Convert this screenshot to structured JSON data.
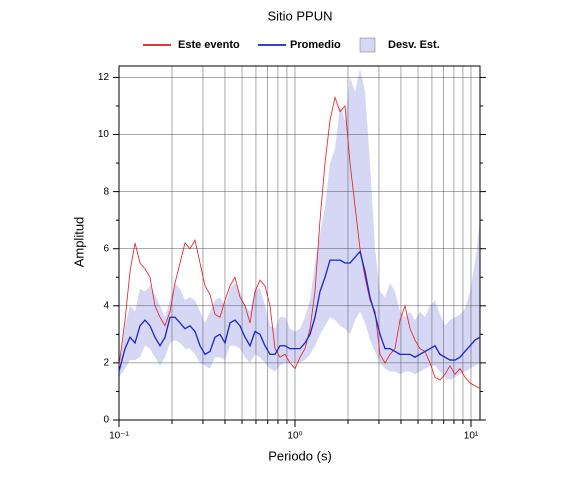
{
  "chart_data": {
    "type": "line",
    "title": "Sitio PPUN",
    "xlabel": "Periodo (s)",
    "ylabel": "Amplitud",
    "log_x": true,
    "grid": true,
    "xlim": [
      0.1,
      11.25
    ],
    "ylim": [
      0,
      12.4
    ],
    "xticks": [
      {
        "value": 0.1,
        "label": "10⁻¹"
      },
      {
        "value": 1,
        "label": "10⁰"
      },
      {
        "value": 10,
        "label": "10¹"
      }
    ],
    "xminorticks": [
      0.2,
      0.3,
      0.4,
      0.5,
      0.6,
      0.7,
      0.8,
      0.9,
      2,
      3,
      4,
      5,
      6,
      7,
      8,
      9
    ],
    "yticks": [
      0,
      2,
      4,
      6,
      8,
      10,
      12
    ],
    "yminorticks": [
      1,
      3,
      5,
      7,
      9,
      11
    ],
    "x": [
      0.1,
      0.1082,
      0.1155,
      0.1233,
      0.1316,
      0.1405,
      0.15,
      0.1601,
      0.171,
      0.1826,
      0.1949,
      0.2081,
      0.2222,
      0.2371,
      0.2532,
      0.2703,
      0.2886,
      0.3081,
      0.3289,
      0.3511,
      0.3749,
      0.4003,
      0.4273,
      0.4562,
      0.487,
      0.5199,
      0.5551,
      0.5926,
      0.6326,
      0.6754,
      0.7211,
      0.7698,
      0.8218,
      0.8774,
      0.9367,
      1.0,
      1.068,
      1.14,
      1.217,
      1.299,
      1.387,
      1.481,
      1.581,
      1.688,
      1.802,
      1.924,
      2.054,
      2.193,
      2.341,
      2.499,
      2.668,
      2.848,
      3.041,
      3.247,
      3.466,
      3.7,
      3.95,
      4.217,
      4.502,
      4.806,
      5.131,
      5.478,
      5.848,
      6.243,
      6.665,
      7.115,
      7.596,
      8.11,
      8.66,
      9.245,
      9.869,
      10.54,
      11.25
    ],
    "series": [
      {
        "name": "Este evento",
        "color": "#e8191d",
        "values": [
          1.9,
          3.5,
          5.2,
          6.2,
          5.5,
          5.3,
          5.0,
          4.0,
          3.6,
          3.3,
          3.8,
          4.8,
          5.5,
          6.2,
          6.0,
          6.3,
          5.5,
          4.7,
          4.4,
          3.7,
          3.6,
          4.2,
          4.7,
          5.0,
          4.3,
          4.0,
          3.4,
          4.5,
          4.9,
          4.7,
          4.0,
          2.5,
          2.2,
          2.3,
          2.0,
          1.8,
          2.2,
          2.5,
          3.2,
          4.5,
          7.0,
          9.0,
          10.5,
          11.3,
          10.8,
          11.0,
          9.0,
          7.5,
          6.0,
          5.0,
          4.2,
          3.8,
          2.3,
          2.0,
          2.3,
          2.5,
          3.5,
          4.0,
          3.2,
          2.8,
          2.5,
          2.4,
          2.0,
          1.5,
          1.4,
          1.6,
          1.9,
          1.6,
          1.8,
          1.5,
          1.3,
          1.2,
          1.1
        ]
      },
      {
        "name": "Promedio",
        "color": "#1726c8",
        "values": [
          1.7,
          2.5,
          2.9,
          2.7,
          3.3,
          3.5,
          3.3,
          2.9,
          2.6,
          2.9,
          3.6,
          3.6,
          3.4,
          3.2,
          3.3,
          3.1,
          2.6,
          2.3,
          2.4,
          2.9,
          3.0,
          2.7,
          3.4,
          3.5,
          3.3,
          2.9,
          2.6,
          3.1,
          3.0,
          2.6,
          2.3,
          2.3,
          2.6,
          2.6,
          2.5,
          2.5,
          2.5,
          2.7,
          3.0,
          3.6,
          4.5,
          5.0,
          5.6,
          5.6,
          5.6,
          5.5,
          5.5,
          5.7,
          5.9,
          5.2,
          4.3,
          3.7,
          3.0,
          2.5,
          2.5,
          2.4,
          2.3,
          2.3,
          2.3,
          2.2,
          2.3,
          2.4,
          2.5,
          2.6,
          2.3,
          2.2,
          2.1,
          2.1,
          2.2,
          2.4,
          2.6,
          2.8,
          2.9
        ]
      },
      {
        "name": "Desv. Est.",
        "color": "#d5d7f5",
        "upper": [
          2.0,
          3.3,
          4.0,
          3.8,
          4.6,
          4.5,
          4.7,
          4.4,
          4.0,
          3.6,
          4.2,
          4.8,
          4.6,
          4.2,
          4.3,
          4.2,
          3.8,
          3.4,
          3.8,
          4.2,
          4.3,
          4.0,
          4.6,
          4.8,
          4.5,
          4.0,
          3.8,
          4.6,
          4.6,
          4.0,
          3.3,
          3.2,
          3.6,
          3.6,
          3.2,
          3.1,
          3.2,
          3.6,
          4.2,
          5.5,
          6.5,
          7.5,
          9.0,
          9.5,
          11.0,
          10.5,
          12.0,
          11.5,
          12.3,
          11.5,
          9.0,
          6.0,
          4.5,
          4.3,
          4.8,
          4.5,
          3.8,
          3.6,
          3.8,
          3.5,
          3.8,
          3.6,
          4.0,
          4.2,
          3.7,
          3.3,
          3.5,
          3.6,
          3.7,
          3.9,
          4.5,
          5.5,
          7.0
        ],
        "lower": [
          1.5,
          1.8,
          2.1,
          2.1,
          2.2,
          2.6,
          2.5,
          2.2,
          1.9,
          2.2,
          2.7,
          2.8,
          2.7,
          2.5,
          2.5,
          2.3,
          2.0,
          1.9,
          1.8,
          2.2,
          2.2,
          2.1,
          2.6,
          2.6,
          2.5,
          2.2,
          2.0,
          2.3,
          2.2,
          2.0,
          1.8,
          1.7,
          1.9,
          2.0,
          2.0,
          2.0,
          2.0,
          2.1,
          2.3,
          2.6,
          3.0,
          3.3,
          3.6,
          3.5,
          3.3,
          3.2,
          3.0,
          3.5,
          3.8,
          3.4,
          2.8,
          2.4,
          2.0,
          1.8,
          1.7,
          1.7,
          1.6,
          1.7,
          1.7,
          1.6,
          1.7,
          1.8,
          1.9,
          1.9,
          1.7,
          1.5,
          1.4,
          1.5,
          1.6,
          1.7,
          1.8,
          1.9,
          2.0
        ]
      }
    ]
  }
}
